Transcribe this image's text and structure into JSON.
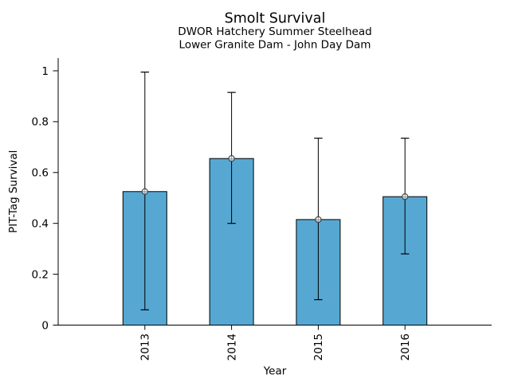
{
  "chart_data": {
    "type": "bar",
    "title": "Smolt Survival",
    "subtitle": [
      "DWOR Hatchery Summer Steelhead",
      "Lower Granite Dam - John Day Dam"
    ],
    "xlabel": "Year",
    "ylabel": "PIT-Tag Survival",
    "categories": [
      "2013",
      "2014",
      "2015",
      "2016"
    ],
    "values": [
      0.525,
      0.655,
      0.415,
      0.505
    ],
    "error_low": [
      0.06,
      0.4,
      0.1,
      0.28
    ],
    "error_high": [
      0.995,
      0.915,
      0.735,
      0.735
    ],
    "yticks": [
      0,
      0.2,
      0.4,
      0.6,
      0.8,
      1
    ],
    "ytick_labels": [
      "0",
      "0.2",
      "0.4",
      "0.6",
      "0.8",
      "1"
    ],
    "ylim": [
      0,
      1.05
    ],
    "grid": false,
    "legend": "none",
    "marker": "open-circle-at-bar-top",
    "colors": {
      "bar_fill": "#56A8D2",
      "bar_edge": "#000000",
      "error_bar": "#000000",
      "marker_edge": "#3F3F3F",
      "marker_fill": "#FFFFFF",
      "axis": "#000000",
      "text": "#000000"
    }
  }
}
